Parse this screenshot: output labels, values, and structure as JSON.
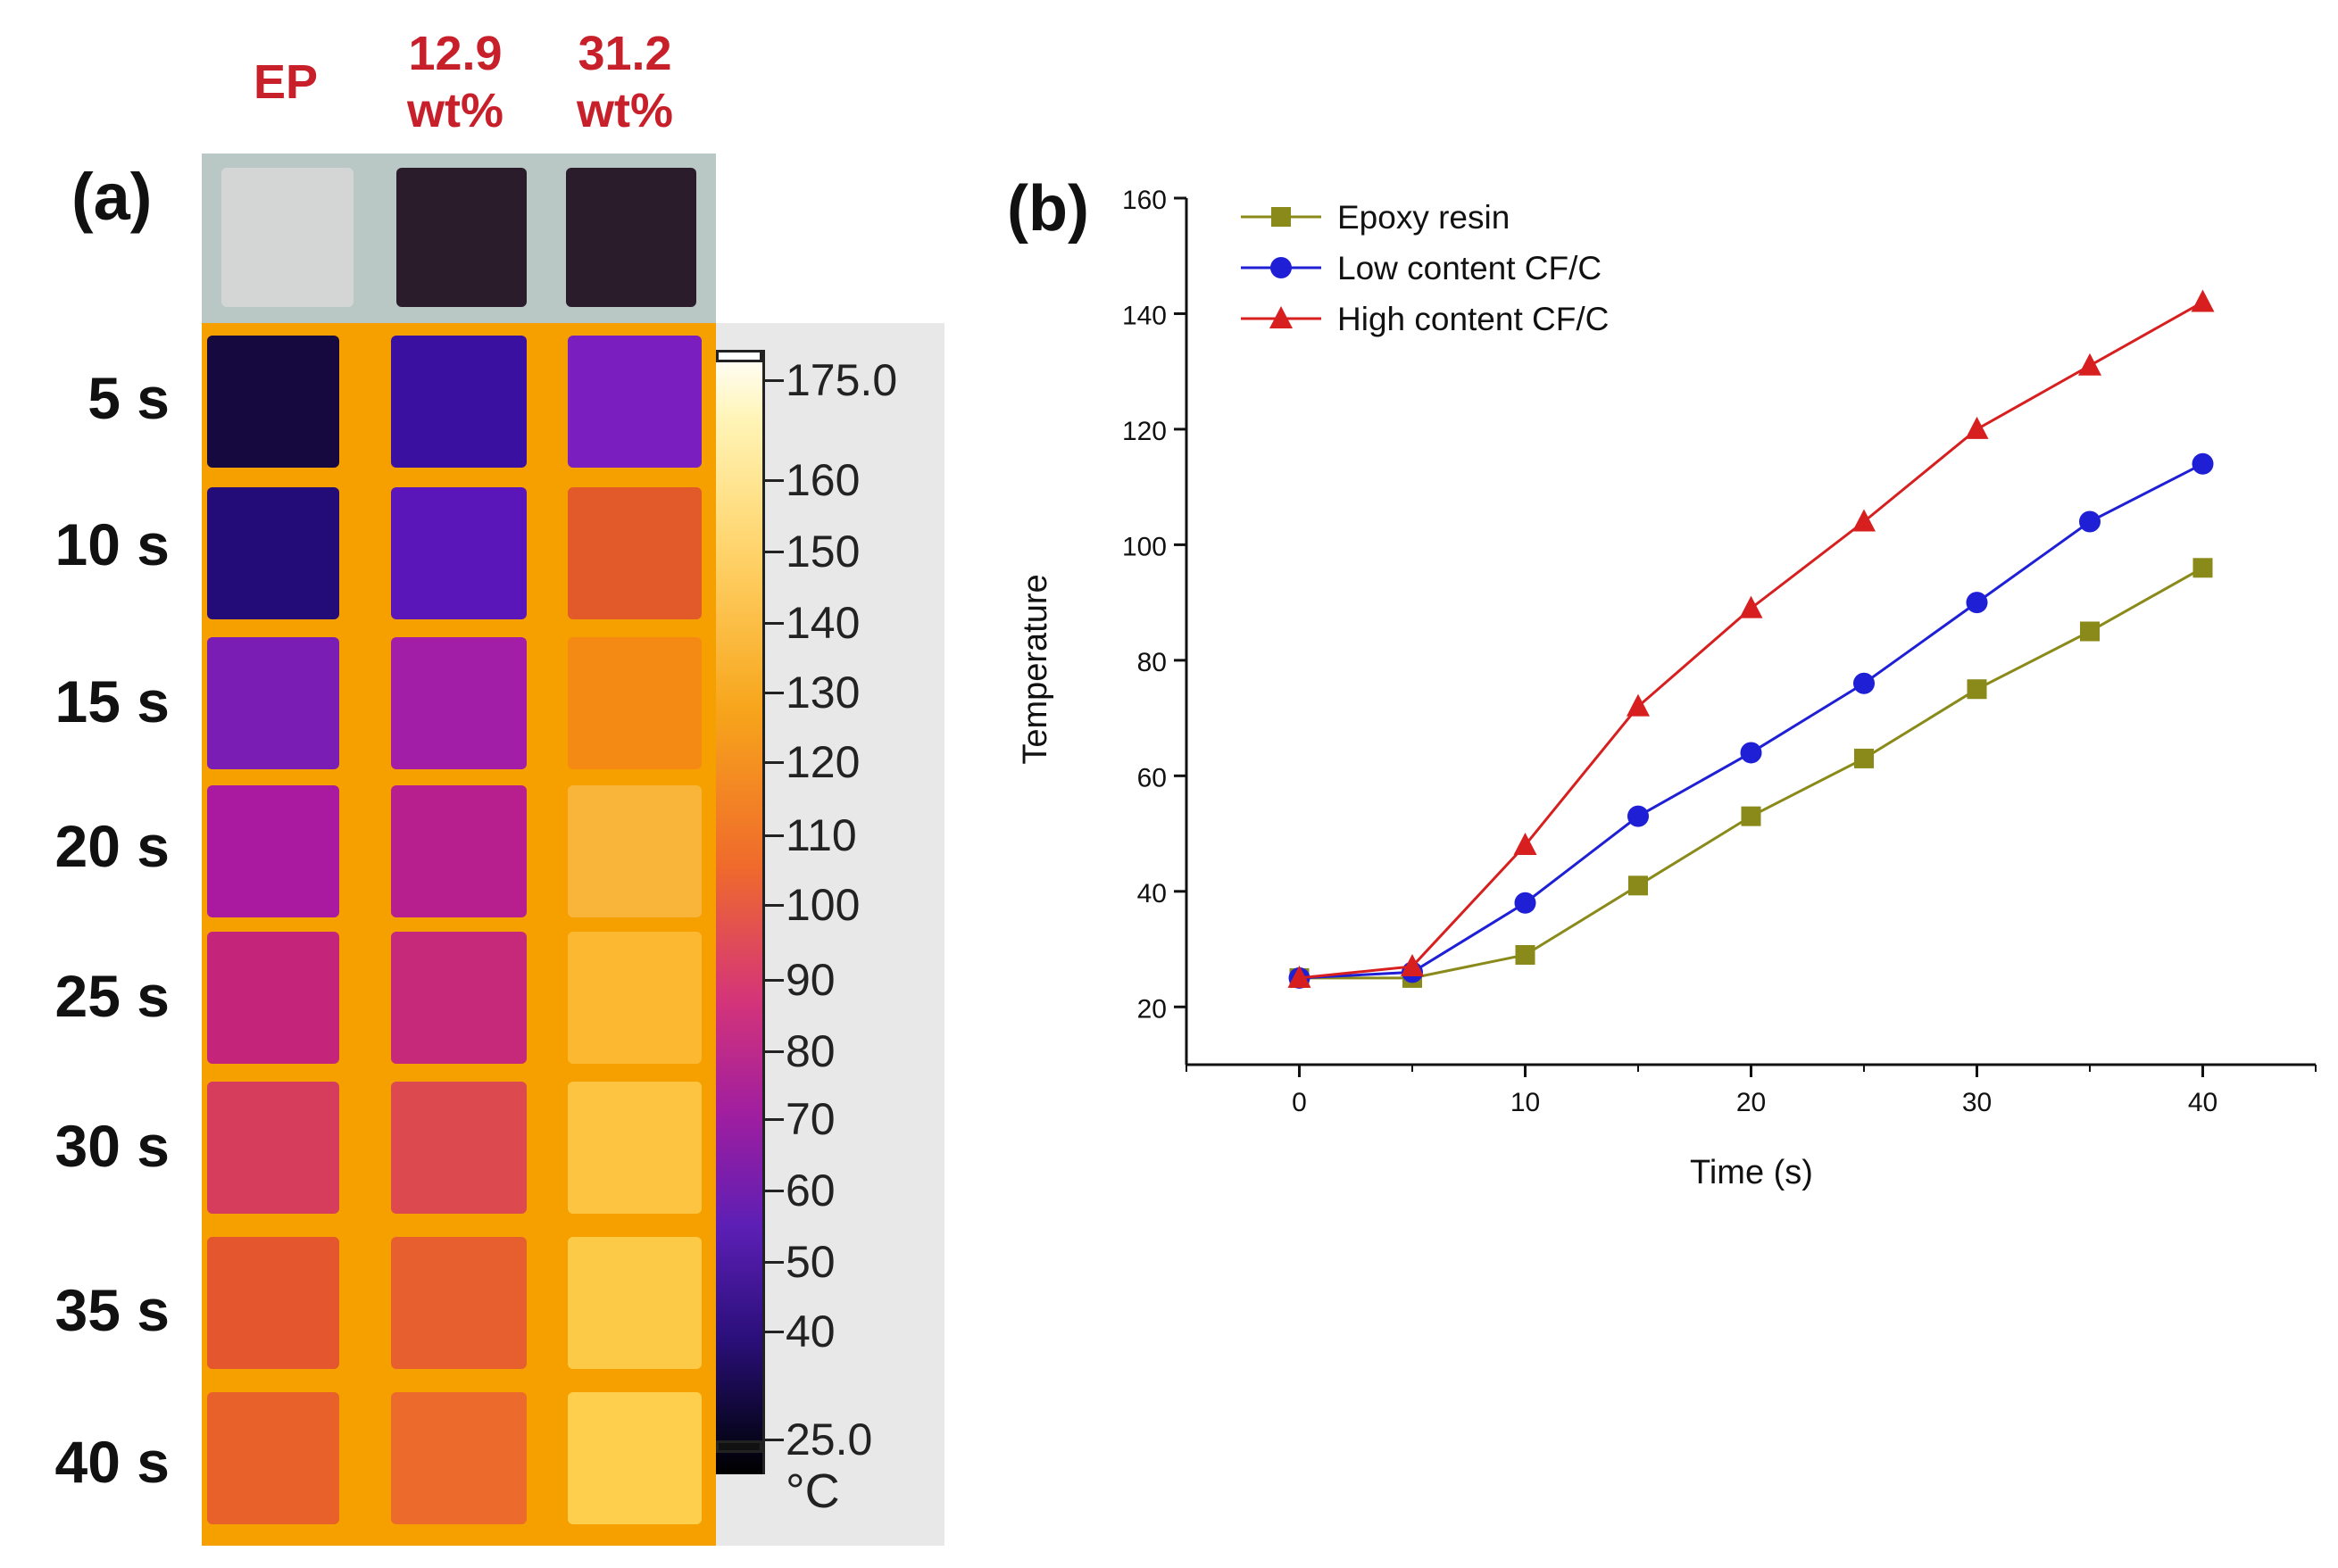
{
  "panel_a": {
    "letter": "(a)",
    "columns": [
      {
        "line1": "EP",
        "line2": ""
      },
      {
        "line1": "12.9",
        "line2": "wt%"
      },
      {
        "line1": "31.2",
        "line2": "wt%"
      }
    ],
    "rows": [
      "5 s",
      "10 s",
      "15 s",
      "20 s",
      "25 s",
      "30 s",
      "35 s",
      "40 s"
    ],
    "scale_labels": [
      "175.0",
      "160",
      "150",
      "140",
      "130",
      "120",
      "110",
      "100",
      "90",
      "80",
      "70",
      "60",
      "50",
      "40",
      "25.0"
    ],
    "unit": "°C",
    "colors": {
      "label_red": "#c8202a",
      "photo_bg": "#b9c7c5",
      "photo_ep": "#d3d6d4",
      "photo_cf": "#2b1c2c",
      "thermal_bg": "#f6a000"
    }
  },
  "chart_data": {
    "type": "line",
    "panel_letter": "(b)",
    "title": "",
    "xlabel": "Time (s)",
    "ylabel": "Temperature",
    "x": [
      0,
      5,
      10,
      15,
      20,
      25,
      30,
      35,
      40
    ],
    "xlim": [
      -5,
      45
    ],
    "ylim": [
      10,
      160
    ],
    "xticks": [
      0,
      10,
      20,
      30,
      40
    ],
    "yticks": [
      20,
      40,
      60,
      80,
      100,
      120,
      140,
      160
    ],
    "grid": false,
    "legend_position": "top-left",
    "series": [
      {
        "name": "Epoxy resin",
        "color": "#8a8a1a",
        "marker": "square",
        "values": [
          25,
          25,
          29,
          41,
          53,
          63,
          75,
          85,
          96
        ]
      },
      {
        "name": "Low content CF/C",
        "color": "#1f1fd6",
        "marker": "circle",
        "values": [
          25,
          26,
          38,
          53,
          64,
          76,
          90,
          104,
          114
        ]
      },
      {
        "name": "High content CF/C",
        "color": "#d81f1f",
        "marker": "triangle",
        "values": [
          25,
          27,
          48,
          72,
          89,
          104,
          120,
          131,
          142
        ]
      }
    ]
  }
}
